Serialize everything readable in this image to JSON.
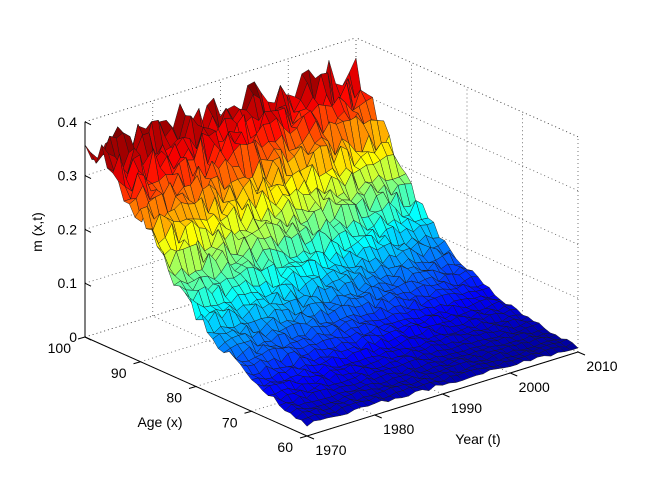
{
  "chart_data": {
    "type": "surface",
    "title": "",
    "xlabel": "Year (t)",
    "ylabel": "Age (x)",
    "zlabel": "m (x,t)",
    "xlim": [
      1970,
      2010
    ],
    "ylim": [
      60,
      100
    ],
    "zlim": [
      0,
      0.4
    ],
    "x_ticks": [
      "1970",
      "1980",
      "1990",
      "2000",
      "2010"
    ],
    "y_ticks": [
      "60",
      "70",
      "80",
      "90",
      "100"
    ],
    "z_ticks": [
      "0",
      "0.1",
      "0.2",
      "0.3",
      "0.4"
    ],
    "x_tick_values": [
      1970,
      1980,
      1990,
      2000,
      2010
    ],
    "y_tick_values": [
      60,
      70,
      80,
      90,
      100
    ],
    "z_tick_values": [
      0,
      0.1,
      0.2,
      0.3,
      0.4
    ],
    "grid": true,
    "colormap": "jet",
    "ages": [
      60,
      65,
      70,
      75,
      80,
      85,
      90,
      95,
      100
    ],
    "years": [
      1970,
      1975,
      1980,
      1985,
      1990,
      1995,
      2000,
      2005,
      2010
    ],
    "mortality_by_age": [
      [
        0.022,
        0.021,
        0.02,
        0.018,
        0.017,
        0.015,
        0.013,
        0.011,
        0.01
      ],
      [
        0.036,
        0.034,
        0.032,
        0.029,
        0.026,
        0.023,
        0.02,
        0.017,
        0.015
      ],
      [
        0.058,
        0.055,
        0.051,
        0.047,
        0.042,
        0.037,
        0.032,
        0.028,
        0.024
      ],
      [
        0.09,
        0.085,
        0.079,
        0.073,
        0.066,
        0.059,
        0.052,
        0.045,
        0.039
      ],
      [
        0.135,
        0.128,
        0.12,
        0.111,
        0.102,
        0.092,
        0.082,
        0.072,
        0.063
      ],
      [
        0.195,
        0.186,
        0.176,
        0.165,
        0.153,
        0.141,
        0.128,
        0.114,
        0.101
      ],
      [
        0.265,
        0.256,
        0.246,
        0.235,
        0.223,
        0.21,
        0.196,
        0.181,
        0.165
      ],
      [
        0.33,
        0.325,
        0.319,
        0.312,
        0.303,
        0.293,
        0.282,
        0.27,
        0.256
      ],
      [
        0.355,
        0.352,
        0.35,
        0.348,
        0.346,
        0.345,
        0.344,
        0.343,
        0.342
      ]
    ]
  }
}
